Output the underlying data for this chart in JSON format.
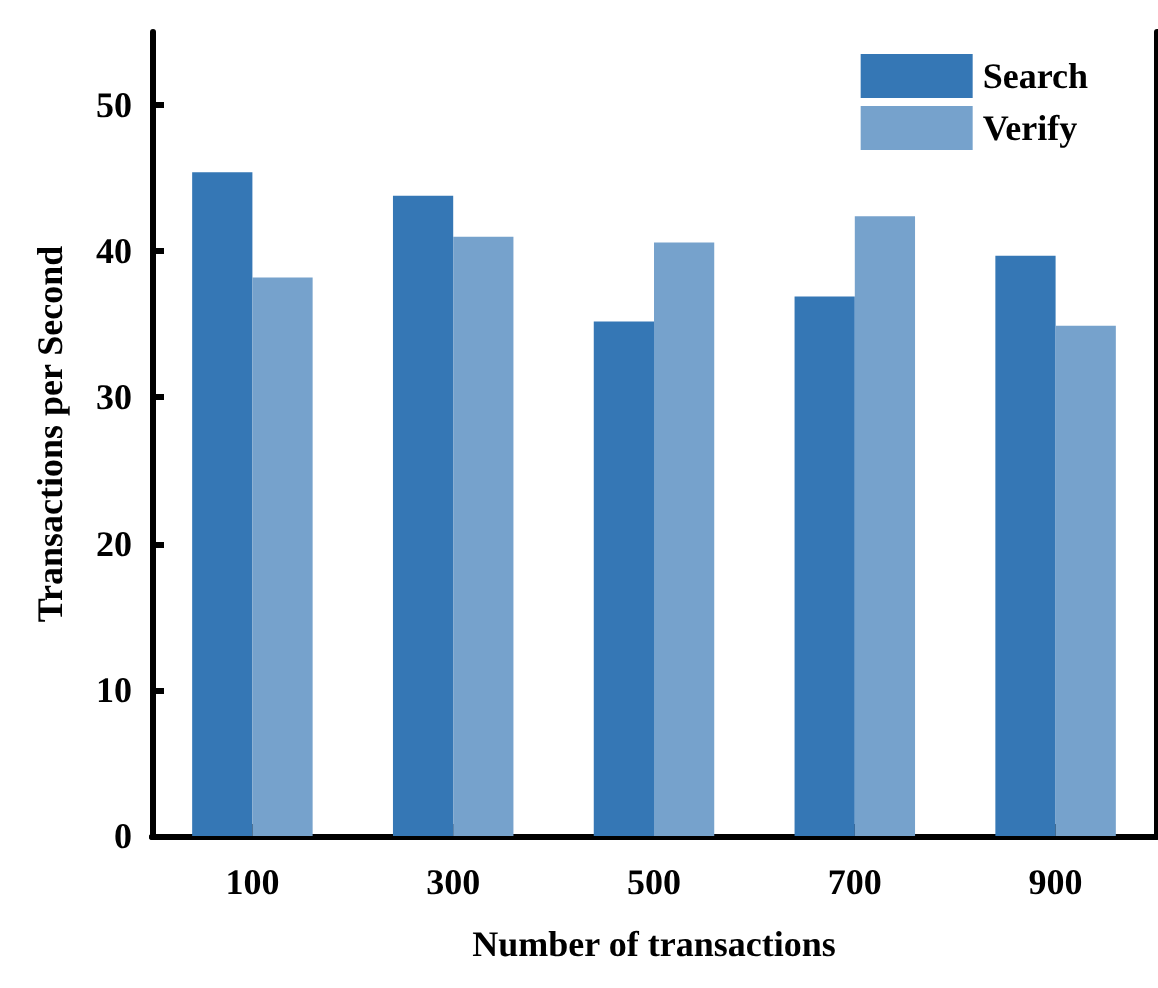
{
  "chart_data": {
    "type": "bar",
    "xlabel": "Number of transactions",
    "ylabel": "Transactions per Second",
    "categories": [
      "100",
      "300",
      "500",
      "700",
      "900"
    ],
    "series": [
      {
        "name": "Search",
        "color": "#3577b5",
        "values": [
          45.4,
          43.8,
          35.2,
          36.9,
          39.7
        ]
      },
      {
        "name": "Verify",
        "color": "#76a2cc",
        "values": [
          38.2,
          41.0,
          40.6,
          42.4,
          34.9
        ]
      }
    ],
    "ylim": [
      0,
      55
    ],
    "yticks": [
      0,
      10,
      20,
      30,
      40,
      50
    ],
    "grid": false,
    "legend": "top right"
  }
}
